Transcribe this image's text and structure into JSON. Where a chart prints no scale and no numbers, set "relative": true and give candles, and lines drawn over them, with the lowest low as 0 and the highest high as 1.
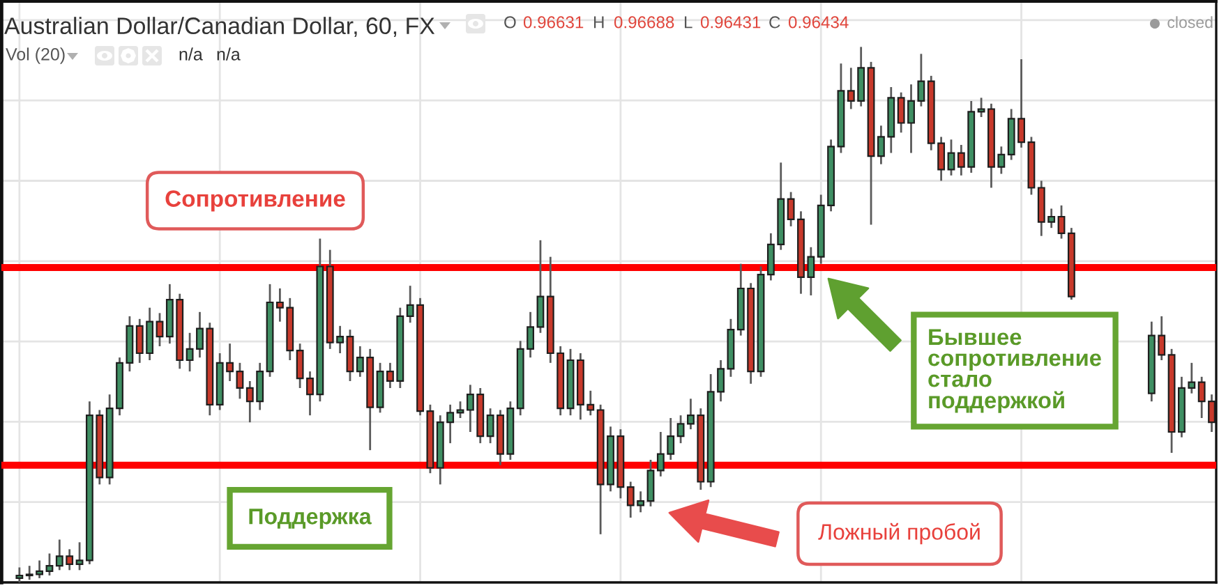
{
  "chart_data": {
    "type": "candlestick",
    "title": "Australian Dollar/Canadian Dollar, 60, FX",
    "relative": true,
    "grid": true,
    "categories": [
      null,
      null,
      null,
      null,
      null,
      null,
      null,
      null,
      null,
      null,
      null,
      null,
      null,
      null,
      null,
      null,
      null,
      null,
      null,
      null,
      null,
      null,
      null,
      null,
      null,
      null,
      null,
      null,
      null,
      null,
      null,
      null,
      null,
      null,
      null,
      null,
      null,
      null,
      null,
      null,
      null,
      null,
      null,
      null,
      null,
      null,
      null,
      null,
      null,
      null,
      null,
      null,
      null,
      null,
      null,
      null,
      null,
      null,
      null,
      null,
      null,
      null,
      null,
      null,
      null,
      null,
      null,
      null,
      null,
      null,
      null,
      null,
      null,
      null,
      null,
      null,
      null,
      null,
      null,
      null,
      null,
      null,
      null,
      null,
      null,
      null,
      null,
      null,
      null,
      null,
      null,
      null,
      null,
      null,
      null,
      null,
      null,
      null,
      null,
      null,
      null,
      null,
      null,
      null,
      null,
      null,
      null,
      null,
      null,
      null,
      null,
      null,
      null,
      null,
      null,
      null,
      null,
      null,
      null,
      null
    ],
    "ohlc": [
      [
        0.008,
        0.028,
        0,
        0.013
      ],
      [
        0.013,
        0.031,
        0.005,
        0.015
      ],
      [
        0.015,
        0.041,
        0.008,
        0.021
      ],
      [
        0.021,
        0.054,
        0.013,
        0.031
      ],
      [
        0.031,
        0.08,
        0.023,
        0.049
      ],
      [
        0.049,
        0.062,
        0.023,
        0.034
      ],
      [
        0.034,
        0.075,
        0.023,
        0.041
      ],
      [
        0.041,
        0.338,
        0.034,
        0.312
      ],
      [
        0.312,
        0.322,
        0.183,
        0.196
      ],
      [
        0.196,
        0.351,
        0.183,
        0.325
      ],
      [
        0.325,
        0.42,
        0.312,
        0.41
      ],
      [
        0.41,
        0.497,
        0.394,
        0.479
      ],
      [
        0.479,
        0.492,
        0.41,
        0.428
      ],
      [
        0.428,
        0.513,
        0.415,
        0.487
      ],
      [
        0.487,
        0.503,
        0.441,
        0.459
      ],
      [
        0.459,
        0.557,
        0.446,
        0.528
      ],
      [
        0.528,
        0.539,
        0.399,
        0.415
      ],
      [
        0.415,
        0.466,
        0.394,
        0.436
      ],
      [
        0.436,
        0.505,
        0.42,
        0.474
      ],
      [
        0.474,
        0.485,
        0.312,
        0.332
      ],
      [
        0.332,
        0.428,
        0.322,
        0.41
      ],
      [
        0.41,
        0.446,
        0.376,
        0.394
      ],
      [
        0.394,
        0.41,
        0.343,
        0.363
      ],
      [
        0.363,
        0.376,
        0.299,
        0.338
      ],
      [
        0.338,
        0.41,
        0.322,
        0.394
      ],
      [
        0.394,
        0.557,
        0.384,
        0.523
      ],
      [
        0.523,
        0.549,
        0.487,
        0.513
      ],
      [
        0.513,
        0.531,
        0.415,
        0.433
      ],
      [
        0.433,
        0.446,
        0.363,
        0.381
      ],
      [
        0.381,
        0.394,
        0.312,
        0.351
      ],
      [
        0.351,
        0.642,
        0.338,
        0.59
      ],
      [
        0.59,
        0.621,
        0.436,
        0.448
      ],
      [
        0.448,
        0.479,
        0.428,
        0.459
      ],
      [
        0.459,
        0.472,
        0.376,
        0.394
      ],
      [
        0.394,
        0.441,
        0.384,
        0.42
      ],
      [
        0.42,
        0.436,
        0.247,
        0.327
      ],
      [
        0.327,
        0.41,
        0.317,
        0.394
      ],
      [
        0.394,
        0.41,
        0.363,
        0.376
      ],
      [
        0.376,
        0.513,
        0.363,
        0.497
      ],
      [
        0.497,
        0.554,
        0.485,
        0.518
      ],
      [
        0.518,
        0.531,
        0.312,
        0.32
      ],
      [
        0.32,
        0.332,
        0.204,
        0.214
      ],
      [
        0.214,
        0.312,
        0.183,
        0.299
      ],
      [
        0.299,
        0.332,
        0.26,
        0.317
      ],
      [
        0.317,
        0.338,
        0.307,
        0.322
      ],
      [
        0.322,
        0.369,
        0.281,
        0.351
      ],
      [
        0.351,
        0.363,
        0.26,
        0.273
      ],
      [
        0.273,
        0.325,
        0.26,
        0.312
      ],
      [
        0.312,
        0.322,
        0.219,
        0.24
      ],
      [
        0.24,
        0.338,
        0.229,
        0.325
      ],
      [
        0.325,
        0.451,
        0.312,
        0.436
      ],
      [
        0.436,
        0.505,
        0.42,
        0.477
      ],
      [
        0.477,
        0.639,
        0.466,
        0.534
      ],
      [
        0.534,
        0.608,
        0.41,
        0.428
      ],
      [
        0.428,
        0.441,
        0.312,
        0.325
      ],
      [
        0.325,
        0.436,
        0.312,
        0.415
      ],
      [
        0.415,
        0.428,
        0.304,
        0.332
      ],
      [
        0.332,
        0.358,
        0.312,
        0.322
      ],
      [
        0.322,
        0.332,
        0.09,
        0.183
      ],
      [
        0.183,
        0.291,
        0.17,
        0.273
      ],
      [
        0.273,
        0.286,
        0.157,
        0.178
      ],
      [
        0.178,
        0.188,
        0.121,
        0.144
      ],
      [
        0.144,
        0.17,
        0.131,
        0.152
      ],
      [
        0.152,
        0.229,
        0.142,
        0.209
      ],
      [
        0.209,
        0.281,
        0.198,
        0.24
      ],
      [
        0.24,
        0.307,
        0.229,
        0.273
      ],
      [
        0.273,
        0.312,
        0.26,
        0.296
      ],
      [
        0.296,
        0.343,
        0.286,
        0.312
      ],
      [
        0.312,
        0.325,
        0.173,
        0.188
      ],
      [
        0.188,
        0.389,
        0.178,
        0.356
      ],
      [
        0.356,
        0.415,
        0.338,
        0.399
      ],
      [
        0.399,
        0.492,
        0.384,
        0.472
      ],
      [
        0.472,
        0.595,
        0.461,
        0.549
      ],
      [
        0.549,
        0.559,
        0.371,
        0.394
      ],
      [
        0.394,
        0.59,
        0.384,
        0.575
      ],
      [
        0.575,
        0.652,
        0.564,
        0.631
      ],
      [
        0.631,
        0.784,
        0.621,
        0.716
      ],
      [
        0.716,
        0.729,
        0.665,
        0.678
      ],
      [
        0.678,
        0.693,
        0.539,
        0.57
      ],
      [
        0.57,
        0.626,
        0.536,
        0.608
      ],
      [
        0.608,
        0.724,
        0.595,
        0.704
      ],
      [
        0.704,
        0.827,
        0.693,
        0.814
      ],
      [
        0.814,
        0.969,
        0.802,
        0.918
      ],
      [
        0.918,
        0.961,
        0.884,
        0.899
      ],
      [
        0.899,
        1,
        0.889,
        0.961
      ],
      [
        0.961,
        0.972,
        0.668,
        0.796
      ],
      [
        0.796,
        0.853,
        0.781,
        0.832
      ],
      [
        0.832,
        0.925,
        0.802,
        0.905
      ],
      [
        0.905,
        0.915,
        0.84,
        0.858
      ],
      [
        0.858,
        0.93,
        0.802,
        0.899
      ],
      [
        0.899,
        0.987,
        0.889,
        0.936
      ],
      [
        0.936,
        0.946,
        0.807,
        0.82
      ],
      [
        0.82,
        0.832,
        0.75,
        0.771
      ],
      [
        0.771,
        0.827,
        0.76,
        0.802
      ],
      [
        0.802,
        0.817,
        0.76,
        0.776
      ],
      [
        0.776,
        0.899,
        0.765,
        0.879
      ],
      [
        0.879,
        0.905,
        0.869,
        0.884
      ],
      [
        0.884,
        0.894,
        0.737,
        0.776
      ],
      [
        0.776,
        0.814,
        0.763,
        0.799
      ],
      [
        0.799,
        0.884,
        0.789,
        0.866
      ],
      [
        0.866,
        0.977,
        0.812,
        0.822
      ],
      [
        0.822,
        0.832,
        0.724,
        0.737
      ],
      [
        0.737,
        0.75,
        0.647,
        0.673
      ],
      [
        0.673,
        0.698,
        0.662,
        0.683
      ],
      [
        0.683,
        0.704,
        0.642,
        0.652
      ],
      [
        0.652,
        0.662,
        0.528,
        0.534
      ],
      null,
      null,
      null,
      null,
      null,
      null,
      null,
      [
        0.353,
        0.487,
        0.338,
        0.461
      ],
      [
        0.461,
        0.497,
        0.415,
        0.425
      ],
      [
        0.425,
        0.436,
        0.242,
        0.281
      ],
      [
        0.281,
        0.384,
        0.271,
        0.363
      ],
      [
        0.363,
        0.41,
        0.353,
        0.374
      ],
      [
        0.374,
        0.384,
        0.307,
        0.338
      ],
      [
        0.338,
        0.351,
        0.281,
        0.299
      ]
    ],
    "colors": [
      "#3f8f63",
      "#3f8f63",
      "#3f8f63",
      "#3f8f63",
      "#3f8f63",
      "#c8392b",
      "#3f8f63",
      "#3f8f63",
      "#c8392b",
      "#3f8f63",
      "#3f8f63",
      "#3f8f63",
      "#c8392b",
      "#3f8f63",
      "#c8392b",
      "#3f8f63",
      "#c8392b",
      "#3f8f63",
      "#3f8f63",
      "#c8392b",
      "#3f8f63",
      "#c8392b",
      "#c8392b",
      "#c8392b",
      "#3f8f63",
      "#3f8f63",
      "#c8392b",
      "#c8392b",
      "#c8392b",
      "#c8392b",
      "#3f8f63",
      "#c8392b",
      "#3f8f63",
      "#c8392b",
      "#3f8f63",
      "#c8392b",
      "#3f8f63",
      "#c8392b",
      "#3f8f63",
      "#3f8f63",
      "#c8392b",
      "#c8392b",
      "#3f8f63",
      "#3f8f63",
      "#3f8f63",
      "#3f8f63",
      "#c8392b",
      "#3f8f63",
      "#c8392b",
      "#3f8f63",
      "#3f8f63",
      "#3f8f63",
      "#3f8f63",
      "#c8392b",
      "#c8392b",
      "#3f8f63",
      "#c8392b",
      "#c8392b",
      "#c8392b",
      "#3f8f63",
      "#c8392b",
      "#c8392b",
      "#3f8f63",
      "#3f8f63",
      "#3f8f63",
      "#3f8f63",
      "#3f8f63",
      "#3f8f63",
      "#c8392b",
      "#3f8f63",
      "#3f8f63",
      "#3f8f63",
      "#3f8f63",
      "#c8392b",
      "#3f8f63",
      "#3f8f63",
      "#3f8f63",
      "#c8392b",
      "#c8392b",
      "#3f8f63",
      "#3f8f63",
      "#3f8f63",
      "#3f8f63",
      "#c8392b",
      "#3f8f63",
      "#c8392b",
      "#3f8f63",
      "#3f8f63",
      "#c8392b",
      "#3f8f63",
      "#3f8f63",
      "#c8392b",
      "#c8392b",
      "#3f8f63",
      "#c8392b",
      "#3f8f63",
      "#3f8f63",
      "#c8392b",
      "#3f8f63",
      "#3f8f63",
      "#c8392b",
      "#c8392b",
      "#c8392b",
      "#3f8f63",
      "#c8392b",
      "#c8392b",
      null,
      null,
      null,
      null,
      null,
      null,
      null,
      "#3f8f63",
      "#c8392b",
      "#c8392b",
      "#3f8f63",
      "#3f8f63",
      "#c8392b",
      "#c8392b"
    ],
    "ref_lines": [
      {
        "axis": "y",
        "value": 0.588,
        "label": "Сопротивление",
        "color": "#ff0000"
      },
      {
        "axis": "y",
        "value": 0.219,
        "label": "Поддержка",
        "color": "#ff0000"
      }
    ],
    "annotations": [
      "O",
      "0.96631",
      "H",
      "0.96688",
      "L",
      "0.96431",
      "C",
      "0.96434",
      "closed",
      "Vol (20)",
      "n/a",
      "n/a",
      "Ложный пробой",
      "Бывшее\nсопротивление\nстало\nподдержкой"
    ]
  }
}
